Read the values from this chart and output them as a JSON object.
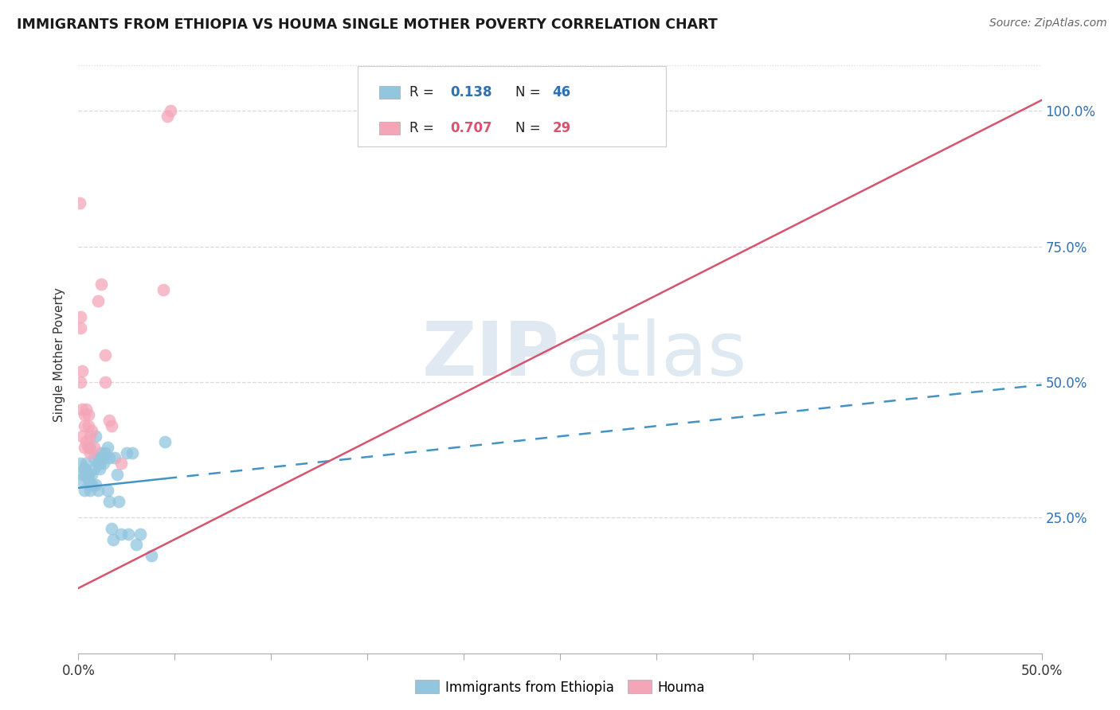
{
  "title": "IMMIGRANTS FROM ETHIOPIA VS HOUMA SINGLE MOTHER POVERTY CORRELATION CHART",
  "source": "Source: ZipAtlas.com",
  "ylabel": "Single Mother Poverty",
  "legend_blue_R": "0.138",
  "legend_blue_N": "46",
  "legend_pink_R": "0.707",
  "legend_pink_N": "29",
  "blue_color": "#92c5de",
  "pink_color": "#f4a6b8",
  "blue_line_color": "#4393c3",
  "pink_line_color": "#d6546e",
  "watermark_zip": "ZIP",
  "watermark_atlas": "atlas",
  "blue_scatter_x": [
    0.001,
    0.002,
    0.001,
    0.003,
    0.003,
    0.004,
    0.003,
    0.004,
    0.005,
    0.005,
    0.006,
    0.006,
    0.006,
    0.007,
    0.007,
    0.008,
    0.008,
    0.009,
    0.009,
    0.01,
    0.01,
    0.01,
    0.011,
    0.011,
    0.012,
    0.012,
    0.013,
    0.013,
    0.014,
    0.015,
    0.015,
    0.016,
    0.016,
    0.017,
    0.018,
    0.019,
    0.02,
    0.021,
    0.022,
    0.025,
    0.026,
    0.028,
    0.03,
    0.032,
    0.038,
    0.045
  ],
  "blue_scatter_y": [
    0.32,
    0.33,
    0.35,
    0.3,
    0.34,
    0.33,
    0.34,
    0.35,
    0.32,
    0.33,
    0.3,
    0.31,
    0.38,
    0.31,
    0.33,
    0.34,
    0.36,
    0.31,
    0.4,
    0.3,
    0.35,
    0.36,
    0.34,
    0.35,
    0.36,
    0.37,
    0.35,
    0.36,
    0.37,
    0.38,
    0.3,
    0.36,
    0.28,
    0.23,
    0.21,
    0.36,
    0.33,
    0.28,
    0.22,
    0.37,
    0.22,
    0.37,
    0.2,
    0.22,
    0.18,
    0.39
  ],
  "pink_scatter_x": [
    0.0005,
    0.001,
    0.001,
    0.001,
    0.002,
    0.002,
    0.002,
    0.003,
    0.003,
    0.003,
    0.004,
    0.004,
    0.005,
    0.005,
    0.005,
    0.006,
    0.006,
    0.007,
    0.008,
    0.01,
    0.012,
    0.014,
    0.014,
    0.016,
    0.017,
    0.022,
    0.044,
    0.046,
    0.048
  ],
  "pink_scatter_y": [
    0.83,
    0.62,
    0.6,
    0.5,
    0.52,
    0.45,
    0.4,
    0.44,
    0.42,
    0.38,
    0.45,
    0.39,
    0.44,
    0.42,
    0.38,
    0.37,
    0.4,
    0.41,
    0.38,
    0.65,
    0.68,
    0.5,
    0.55,
    0.43,
    0.42,
    0.35,
    0.67,
    0.99,
    1.0
  ],
  "blue_line_x": [
    0.0,
    0.5
  ],
  "blue_line_y": [
    0.305,
    0.495
  ],
  "pink_line_x": [
    0.0,
    0.5
  ],
  "pink_line_y": [
    0.12,
    1.02
  ],
  "xmin": 0.0,
  "xmax": 0.5,
  "ymin": 0.0,
  "ymax": 1.1,
  "yticks": [
    0.25,
    0.5,
    0.75,
    1.0
  ],
  "xtick_positions": [
    0.0,
    0.05,
    0.1,
    0.15,
    0.2,
    0.25,
    0.3,
    0.35,
    0.4,
    0.45,
    0.5
  ],
  "grid_color": "#d9d9d9",
  "top_border_color": "#d9d9d9"
}
